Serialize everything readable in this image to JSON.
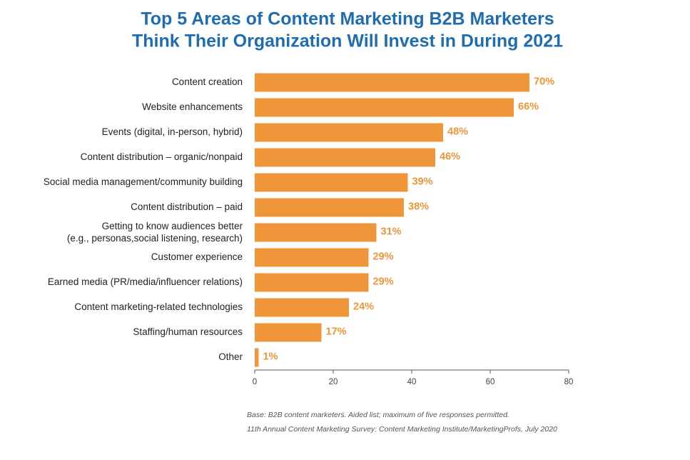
{
  "chart_data": {
    "type": "bar",
    "orientation": "horizontal",
    "title": [
      "Top 5 Areas of Content Marketing B2B Marketers",
      "Think Their Organization Will Invest in During 2021"
    ],
    "categories": [
      "Content creation",
      "Website enhancements",
      "Events (digital, in-person, hybrid)",
      "Content distribution – organic/nonpaid",
      "Social media management/community building",
      "Content distribution – paid",
      "Getting to know audiences better\n(e.g., personas,social listening, research)",
      "Customer experience",
      "Earned media (PR/media/influencer relations)",
      "Content marketing-related technologies",
      "Staffing/human resources",
      "Other"
    ],
    "values": [
      70,
      66,
      48,
      46,
      39,
      38,
      31,
      29,
      29,
      24,
      17,
      1
    ],
    "value_labels": [
      "70%",
      "66%",
      "48%",
      "46%",
      "39%",
      "38%",
      "31%",
      "29%",
      "29%",
      "24%",
      "17%",
      "1%"
    ],
    "color": "#f0963a",
    "xlim": [
      0,
      80
    ],
    "xticks": [
      0,
      20,
      40,
      60,
      80
    ],
    "grid": false,
    "notes": [
      "Base: B2B content marketers. Aided list; maximum of five responses permitted.",
      "11th Annual Content Marketing Survey: Content Marketing Institute/MarketingProfs, July 2020"
    ]
  }
}
